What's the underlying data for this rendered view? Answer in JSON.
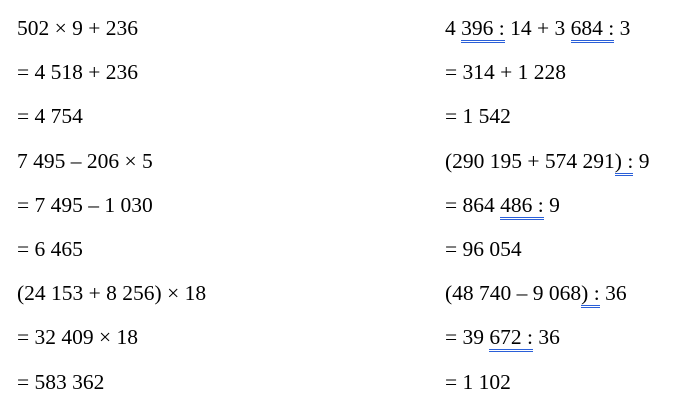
{
  "left_column": [
    [
      {
        "text": "502 × 9 + 236"
      }
    ],
    [
      {
        "text": "= 4 518 + 236"
      }
    ],
    [
      {
        "text": "= 4 754"
      }
    ],
    [
      {
        "text": "7 495 – 206 × 5"
      }
    ],
    [
      {
        "text": "= 7 495 – 1 030"
      }
    ],
    [
      {
        "text": "= 6 465"
      }
    ],
    [
      {
        "text": "(24 153 + 8 256) × 18"
      }
    ],
    [
      {
        "text": "= 32 409 × 18"
      }
    ],
    [
      {
        "text": "= 583 362"
      }
    ]
  ],
  "right_column": [
    [
      {
        "text": "4 "
      },
      {
        "text": "396 :",
        "spellcheck": true
      },
      {
        "text": " 14 + 3 "
      },
      {
        "text": "684 :",
        "spellcheck": true
      },
      {
        "text": " 3"
      }
    ],
    [
      {
        "text": "= 314 + 1 228"
      }
    ],
    [
      {
        "text": "= 1 542"
      }
    ],
    [
      {
        "text": "(290 195 + 574 291"
      },
      {
        "text": ") :",
        "spellcheck": true
      },
      {
        "text": " 9"
      }
    ],
    [
      {
        "text": "= 864 "
      },
      {
        "text": "486 :",
        "spellcheck": true
      },
      {
        "text": " 9"
      }
    ],
    [
      {
        "text": "= 96 054"
      }
    ],
    [
      {
        "text": "(48 740 – 9 068"
      },
      {
        "text": ") :",
        "spellcheck": true
      },
      {
        "text": " 36"
      }
    ],
    [
      {
        "text": "= 39 "
      },
      {
        "text": "672 :",
        "spellcheck": true
      },
      {
        "text": " 36"
      }
    ],
    [
      {
        "text": "= 1 102"
      }
    ]
  ],
  "colors": {
    "spellcheck_underline": "#2a5fd8",
    "text": "#000000"
  }
}
